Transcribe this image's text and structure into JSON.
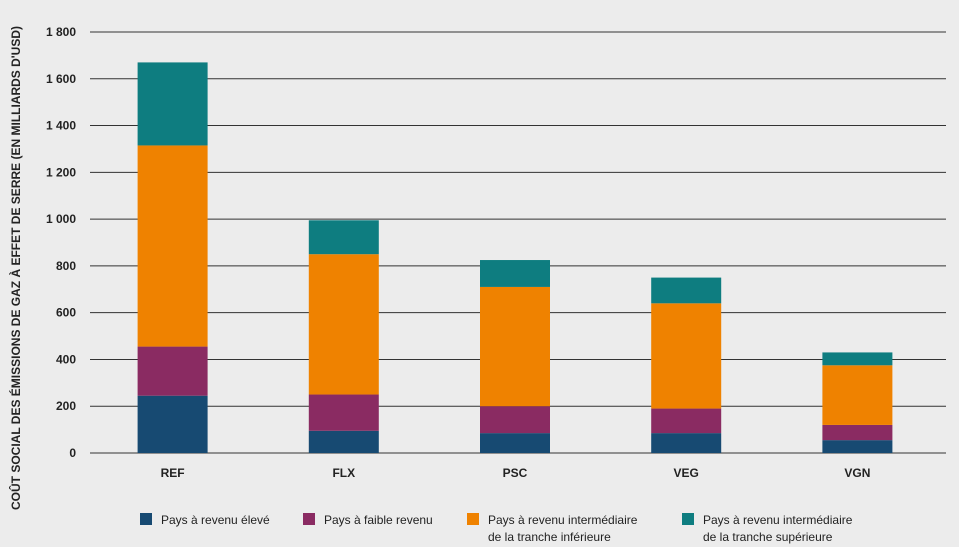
{
  "chart_data": {
    "type": "bar",
    "stacked": true,
    "title": "",
    "xlabel": "",
    "ylabel": "COÛT SOCIAL DES ÉMISSIONS DE GAZ À EFFET DE SERRE (EN MILLIARDS D'USD)",
    "ylim": [
      0,
      1800
    ],
    "yticks": [
      0,
      200,
      400,
      600,
      800,
      1000,
      1200,
      1400,
      1600,
      1800
    ],
    "ytick_labels": [
      "0",
      "200",
      "400",
      "600",
      "800",
      "1 000",
      "1 200",
      "1 400",
      "1 600",
      "1 800"
    ],
    "grid": true,
    "legend_position": "bottom",
    "categories": [
      "REF",
      "FLX",
      "PSC",
      "VEG",
      "VGN"
    ],
    "series": [
      {
        "name": "Pays à revenu élevé",
        "legend_lines": [
          "Pays à revenu élevé"
        ],
        "color": "#174a72",
        "values": [
          245,
          95,
          85,
          85,
          55
        ]
      },
      {
        "name": "Pays à faible revenu",
        "legend_lines": [
          "Pays à faible revenu"
        ],
        "color": "#8a2b62",
        "values": [
          210,
          155,
          115,
          105,
          65
        ]
      },
      {
        "name": "Pays à revenu intermédiaire de la tranche inférieure",
        "legend_lines": [
          "Pays à revenu intermédiaire",
          "de la tranche inférieure"
        ],
        "color": "#ef8200",
        "values": [
          860,
          600,
          510,
          450,
          255
        ]
      },
      {
        "name": "Pays à revenu intermédiaire de la tranche supérieure",
        "legend_lines": [
          "Pays à revenu intermédiaire",
          "de la tranche supérieure"
        ],
        "color": "#0e7d80",
        "values": [
          355,
          145,
          115,
          110,
          55
        ]
      }
    ]
  }
}
